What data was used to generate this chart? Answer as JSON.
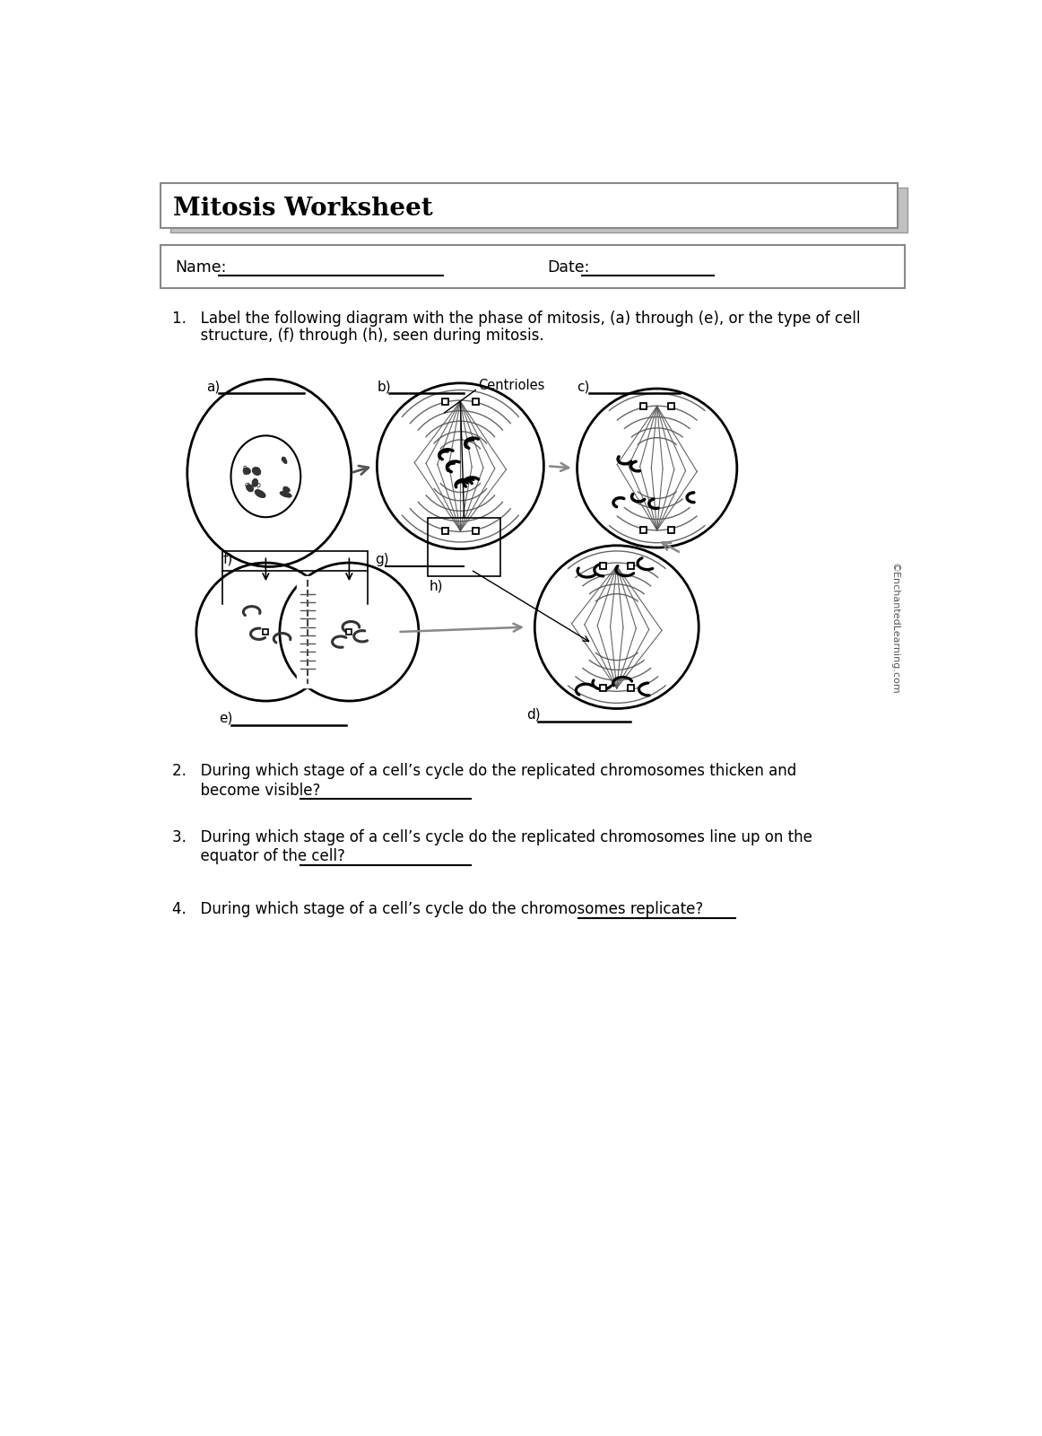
{
  "title": "Mitosis Worksheet",
  "page_bg": "#ffffff",
  "name_label": "Name:",
  "date_label": "Date:",
  "q1_text_line1": "1.   Label the following diagram with the phase of mitosis, (a) through (e), or the type of cell",
  "q1_text_line2": "      structure, (f) through (h), seen during mitosis.",
  "q2_text_line1": "2.   During which stage of a cell’s cycle do the replicated chromosomes thicken and",
  "q2_text_line2": "      become visible?",
  "q3_text_line1": "3.   During which stage of a cell’s cycle do the replicated chromosomes line up on the",
  "q3_text_line2": "      equator of the cell?",
  "q4_text": "4.   During which stage of a cell’s cycle do the chromosomes replicate?",
  "copyright": "©EnchantedLearning.com",
  "label_a": "a)",
  "label_b": "b)",
  "label_c": "c)",
  "label_d": "d)",
  "label_e": "e)",
  "label_f": "f)",
  "label_g": "g)",
  "label_h": "h)",
  "label_centrioles": "Centrioles"
}
